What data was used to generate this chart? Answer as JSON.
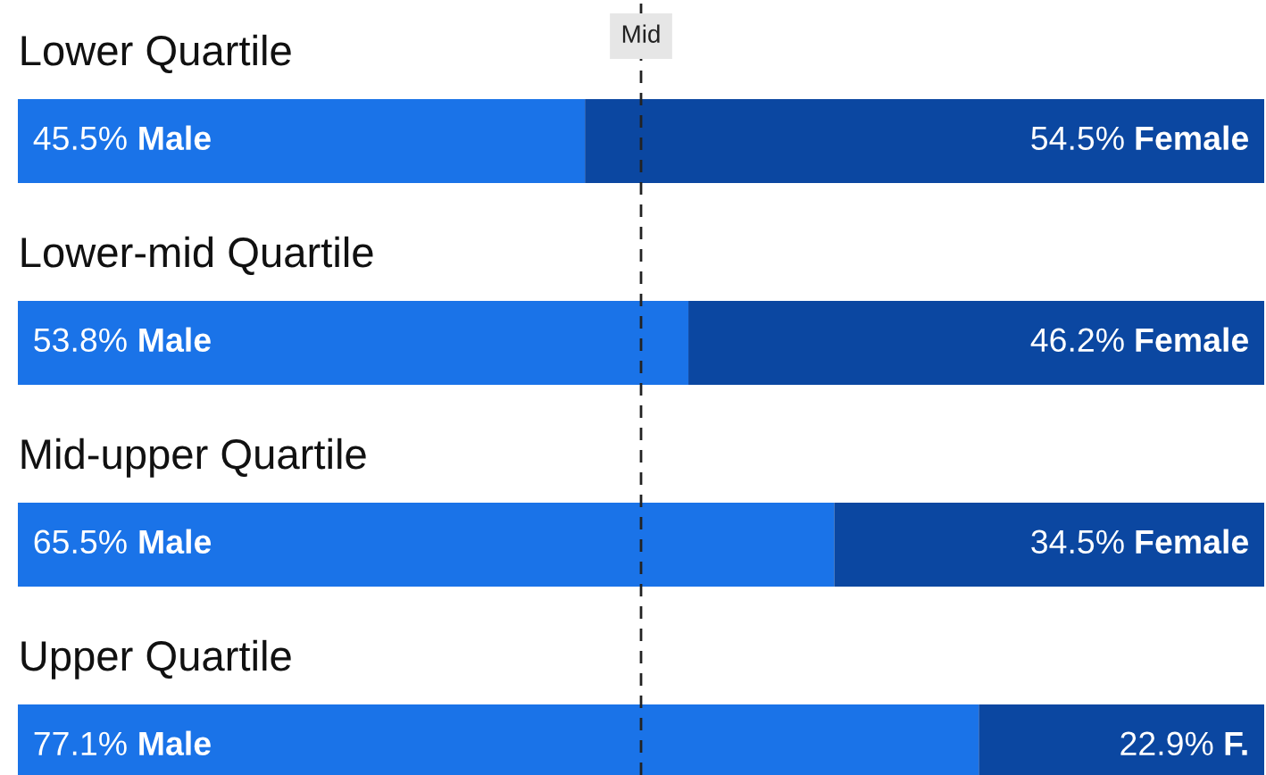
{
  "chart_data": {
    "type": "bar",
    "orientation": "horizontal",
    "stacked": true,
    "categories": [
      "Lower Quartile",
      "Lower-mid Quartile",
      "Mid-upper Quartile",
      "Upper Quartile"
    ],
    "xlim": [
      0,
      100
    ],
    "series": [
      {
        "color": "#1a73e8",
        "values": [
          45.5,
          53.8,
          65.5,
          77.1
        ],
        "value_labels": [
          "45.5% Male",
          "53.8% Male",
          "65.5% Male",
          "77.1% Male"
        ]
      },
      {
        "color": "#0b47a1",
        "values": [
          54.5,
          46.2,
          34.5,
          22.9
        ],
        "value_labels": [
          "54.5% Female",
          "46.2% Female",
          "34.5% Female",
          "22.9% F."
        ]
      }
    ],
    "ref_lines": [
      {
        "axis": "x",
        "value": 50,
        "label": "Mid",
        "color": "#222222",
        "line_style": "dashed"
      }
    ]
  }
}
